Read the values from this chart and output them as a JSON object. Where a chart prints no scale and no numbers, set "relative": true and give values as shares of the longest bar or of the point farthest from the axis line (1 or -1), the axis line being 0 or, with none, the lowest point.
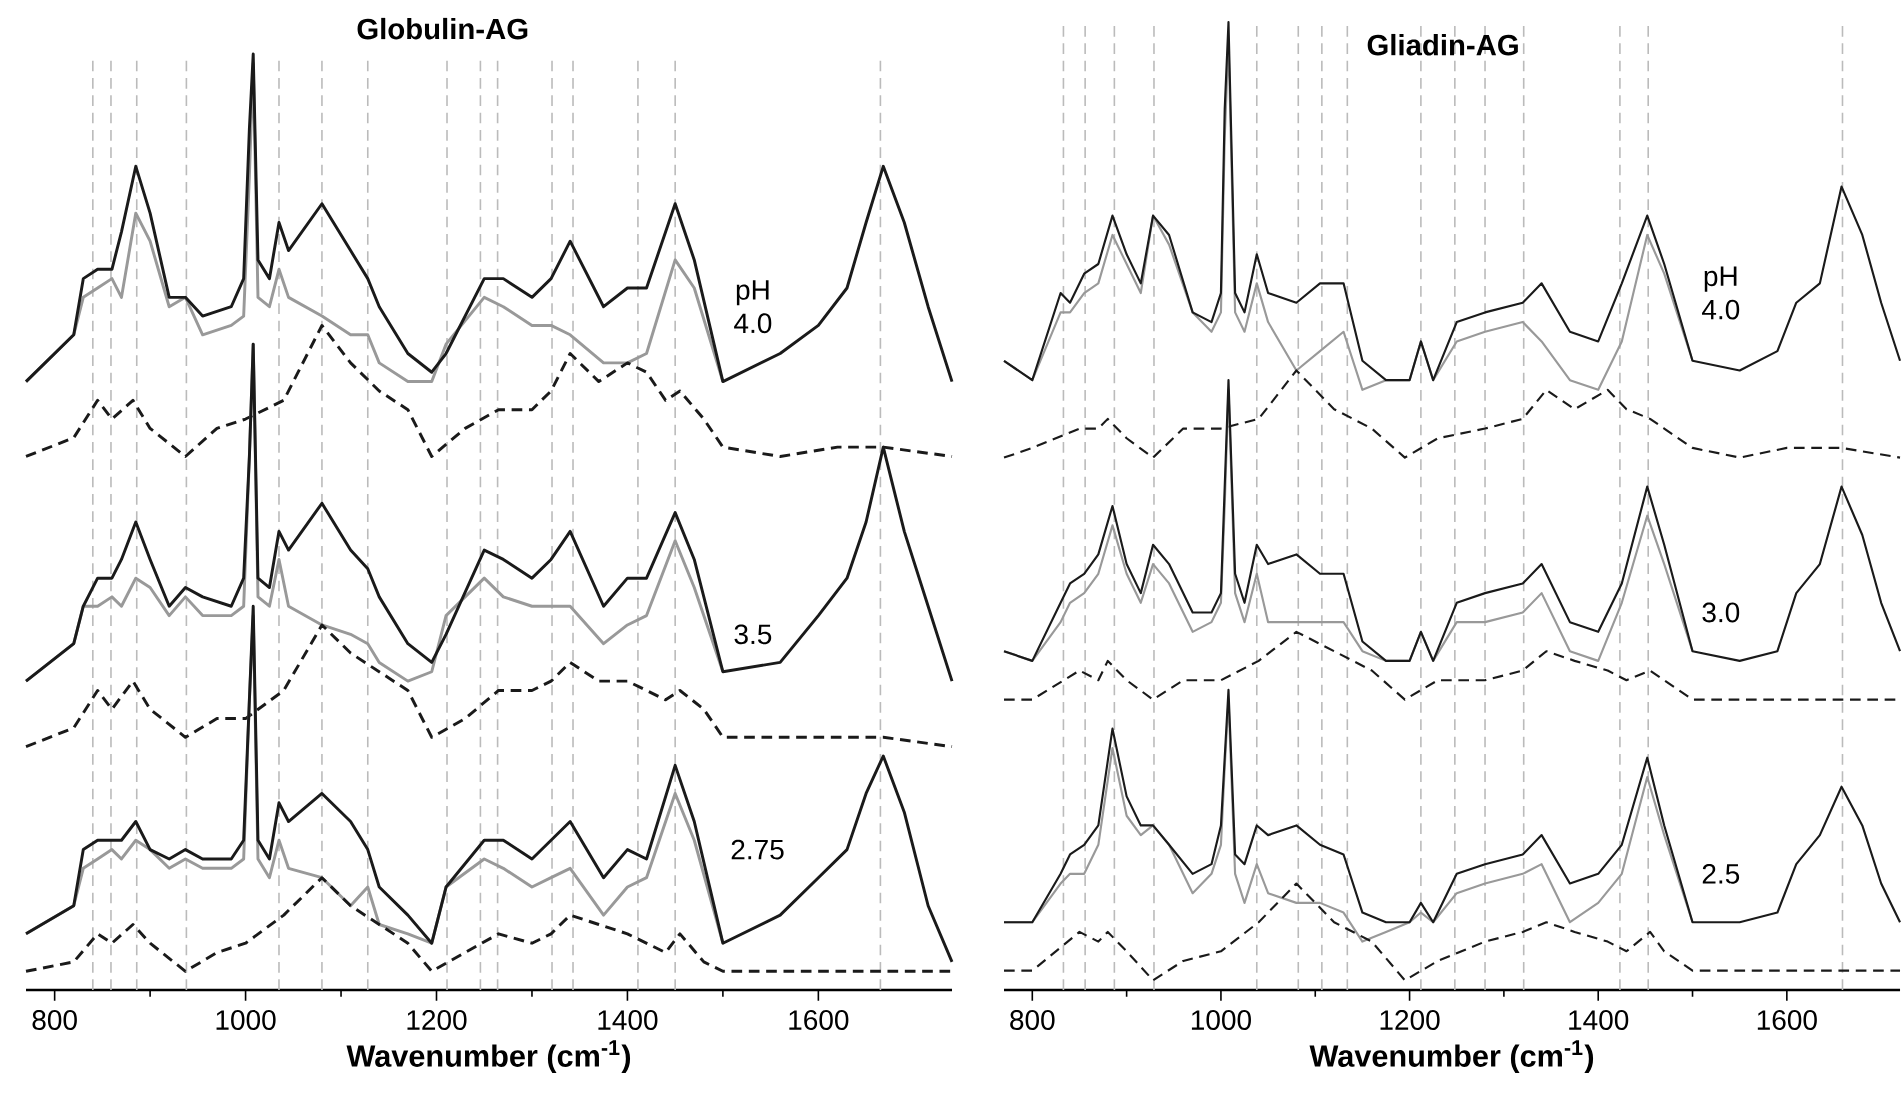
{
  "chart_data": [
    {
      "type": "line",
      "title": "Globulin-AG",
      "xlabel": "Wavenumber (cm$^{-1}$)",
      "relative": true,
      "xlim": [
        770,
        1740
      ],
      "xticks": [
        800,
        1000,
        1200,
        1400,
        1600
      ],
      "ref_lines": [
        {
          "axis": "x",
          "value": 840,
          "color": "#bbbbbb",
          "line_style": "dashed"
        },
        {
          "axis": "x",
          "value": 859,
          "color": "#bbbbbb",
          "line_style": "dashed"
        },
        {
          "axis": "x",
          "value": 886,
          "color": "#bbbbbb",
          "line_style": "dashed"
        },
        {
          "axis": "x",
          "value": 938,
          "color": "#bbbbbb",
          "line_style": "dashed"
        },
        {
          "axis": "x",
          "value": 1035,
          "color": "#bbbbbb",
          "line_style": "dashed"
        },
        {
          "axis": "x",
          "value": 1080,
          "color": "#bbbbbb",
          "line_style": "dashed"
        },
        {
          "axis": "x",
          "value": 1128,
          "color": "#bbbbbb",
          "line_style": "dashed"
        },
        {
          "axis": "x",
          "value": 1211,
          "color": "#bbbbbb",
          "line_style": "dashed"
        },
        {
          "axis": "x",
          "value": 1246,
          "color": "#bbbbbb",
          "line_style": "dashed"
        },
        {
          "axis": "x",
          "value": 1264,
          "color": "#bbbbbb",
          "line_style": "dashed"
        },
        {
          "axis": "x",
          "value": 1321,
          "color": "#bbbbbb",
          "line_style": "dashed"
        },
        {
          "axis": "x",
          "value": 1343,
          "color": "#bbbbbb",
          "line_style": "dashed"
        },
        {
          "axis": "x",
          "value": 1411,
          "color": "#bbbbbb",
          "line_style": "dashed"
        },
        {
          "axis": "x",
          "value": 1450,
          "color": "#bbbbbb",
          "line_style": "dashed"
        },
        {
          "axis": "x",
          "value": 1665,
          "color": "#bbbbbb",
          "line_style": "dashed"
        }
      ],
      "annotations": [
        "pH 4.0",
        "3.5",
        "2.75"
      ],
      "series": [
        {
          "color": "#999999",
          "line_style": "solid",
          "x": [
            770,
            820,
            830,
            845,
            860,
            870,
            885,
            900,
            920,
            937,
            955,
            985,
            998,
            1004,
            1008,
            1013,
            1025,
            1035,
            1045,
            1080,
            1110,
            1128,
            1140,
            1170,
            1195,
            1210,
            1250,
            1270,
            1300,
            1320,
            1340,
            1375,
            1400,
            1420,
            1450,
            1470,
            1500
          ],
          "values": [
            0.65,
            0.7,
            0.74,
            0.75,
            0.76,
            0.74,
            0.83,
            0.8,
            0.73,
            0.74,
            0.7,
            0.71,
            0.72,
            0.87,
            0.99,
            0.74,
            0.73,
            0.77,
            0.74,
            0.72,
            0.7,
            0.7,
            0.67,
            0.65,
            0.65,
            0.69,
            0.74,
            0.73,
            0.71,
            0.71,
            0.7,
            0.67,
            0.67,
            0.68,
            0.78,
            0.75,
            0.65
          ]
        },
        {
          "color": "#1a1a1a",
          "line_style": "solid",
          "x": [
            770,
            820,
            830,
            845,
            860,
            870,
            885,
            900,
            920,
            937,
            955,
            985,
            998,
            1004,
            1008,
            1013,
            1025,
            1035,
            1045,
            1080,
            1110,
            1128,
            1140,
            1170,
            1195,
            1210,
            1250,
            1270,
            1300,
            1320,
            1340,
            1375,
            1400,
            1420,
            1450,
            1470,
            1500,
            1560,
            1600,
            1630,
            1650,
            1668,
            1690,
            1715,
            1740
          ],
          "values": [
            0.65,
            0.7,
            0.76,
            0.77,
            0.77,
            0.81,
            0.88,
            0.83,
            0.74,
            0.74,
            0.72,
            0.73,
            0.76,
            0.92,
            1.0,
            0.78,
            0.76,
            0.82,
            0.79,
            0.84,
            0.79,
            0.76,
            0.73,
            0.68,
            0.66,
            0.68,
            0.76,
            0.76,
            0.74,
            0.76,
            0.8,
            0.73,
            0.75,
            0.75,
            0.84,
            0.78,
            0.65,
            0.68,
            0.71,
            0.75,
            0.82,
            0.88,
            0.82,
            0.73,
            0.65
          ]
        },
        {
          "color": "#1a1a1a",
          "line_style": "dashed",
          "x": [
            770,
            820,
            845,
            860,
            882,
            900,
            937,
            970,
            1000,
            1040,
            1080,
            1110,
            1140,
            1170,
            1195,
            1230,
            1265,
            1300,
            1320,
            1340,
            1370,
            1400,
            1420,
            1440,
            1455,
            1480,
            1500,
            1560,
            1620,
            1668,
            1740
          ],
          "values": [
            0.57,
            0.59,
            0.63,
            0.61,
            0.63,
            0.6,
            0.57,
            0.6,
            0.61,
            0.63,
            0.71,
            0.67,
            0.64,
            0.62,
            0.57,
            0.6,
            0.62,
            0.62,
            0.64,
            0.68,
            0.65,
            0.67,
            0.66,
            0.63,
            0.64,
            0.61,
            0.58,
            0.57,
            0.58,
            0.58,
            0.57
          ]
        },
        {
          "color": "#999999",
          "line_style": "solid",
          "x": [
            770,
            820,
            830,
            845,
            860,
            870,
            885,
            900,
            920,
            937,
            955,
            985,
            998,
            1004,
            1008,
            1013,
            1025,
            1035,
            1045,
            1080,
            1110,
            1128,
            1140,
            1170,
            1195,
            1210,
            1250,
            1270,
            1300,
            1320,
            1340,
            1375,
            1400,
            1420,
            1450,
            1470,
            1500
          ],
          "values": [
            0.33,
            0.37,
            0.41,
            0.41,
            0.42,
            0.41,
            0.44,
            0.43,
            0.4,
            0.42,
            0.4,
            0.4,
            0.41,
            0.57,
            0.69,
            0.42,
            0.41,
            0.46,
            0.41,
            0.39,
            0.38,
            0.37,
            0.35,
            0.33,
            0.34,
            0.4,
            0.44,
            0.42,
            0.41,
            0.41,
            0.41,
            0.37,
            0.39,
            0.4,
            0.48,
            0.43,
            0.34
          ]
        },
        {
          "color": "#1a1a1a",
          "line_style": "solid",
          "x": [
            770,
            820,
            830,
            845,
            860,
            870,
            885,
            900,
            920,
            937,
            955,
            985,
            998,
            1004,
            1008,
            1013,
            1025,
            1035,
            1045,
            1080,
            1110,
            1128,
            1140,
            1170,
            1195,
            1210,
            1250,
            1270,
            1300,
            1320,
            1340,
            1375,
            1400,
            1420,
            1450,
            1470,
            1500,
            1560,
            1600,
            1630,
            1650,
            1668,
            1690,
            1715,
            1740
          ],
          "values": [
            0.33,
            0.37,
            0.41,
            0.44,
            0.44,
            0.46,
            0.5,
            0.46,
            0.41,
            0.43,
            0.42,
            0.41,
            0.44,
            0.57,
            0.69,
            0.44,
            0.43,
            0.49,
            0.47,
            0.52,
            0.47,
            0.45,
            0.42,
            0.37,
            0.35,
            0.38,
            0.47,
            0.46,
            0.44,
            0.46,
            0.49,
            0.41,
            0.44,
            0.44,
            0.51,
            0.46,
            0.34,
            0.35,
            0.4,
            0.44,
            0.5,
            0.58,
            0.49,
            0.41,
            0.33
          ]
        },
        {
          "color": "#1a1a1a",
          "line_style": "dashed",
          "x": [
            770,
            820,
            845,
            860,
            882,
            900,
            937,
            970,
            1000,
            1040,
            1080,
            1110,
            1140,
            1170,
            1195,
            1230,
            1265,
            1300,
            1320,
            1340,
            1370,
            1400,
            1420,
            1440,
            1455,
            1480,
            1500,
            1560,
            1620,
            1668,
            1740
          ],
          "values": [
            0.26,
            0.28,
            0.32,
            0.3,
            0.33,
            0.3,
            0.27,
            0.29,
            0.29,
            0.32,
            0.39,
            0.36,
            0.34,
            0.32,
            0.27,
            0.29,
            0.32,
            0.32,
            0.33,
            0.35,
            0.33,
            0.33,
            0.32,
            0.31,
            0.32,
            0.3,
            0.27,
            0.27,
            0.27,
            0.27,
            0.26
          ]
        },
        {
          "color": "#999999",
          "line_style": "solid",
          "x": [
            770,
            820,
            830,
            845,
            860,
            870,
            885,
            900,
            920,
            937,
            955,
            985,
            998,
            1004,
            1008,
            1013,
            1025,
            1035,
            1045,
            1080,
            1110,
            1128,
            1140,
            1170,
            1195,
            1210,
            1250,
            1270,
            1300,
            1320,
            1340,
            1375,
            1400,
            1420,
            1450,
            1470,
            1500
          ],
          "values": [
            0.06,
            0.09,
            0.13,
            0.14,
            0.15,
            0.14,
            0.16,
            0.15,
            0.13,
            0.14,
            0.13,
            0.13,
            0.14,
            0.31,
            0.4,
            0.14,
            0.12,
            0.16,
            0.13,
            0.12,
            0.09,
            0.11,
            0.07,
            0.06,
            0.05,
            0.11,
            0.14,
            0.13,
            0.11,
            0.12,
            0.13,
            0.08,
            0.11,
            0.12,
            0.21,
            0.16,
            0.05
          ]
        },
        {
          "color": "#1a1a1a",
          "line_style": "solid",
          "x": [
            770,
            820,
            830,
            845,
            860,
            870,
            885,
            900,
            920,
            937,
            955,
            985,
            998,
            1004,
            1008,
            1013,
            1025,
            1035,
            1045,
            1080,
            1110,
            1128,
            1140,
            1170,
            1195,
            1210,
            1250,
            1270,
            1300,
            1320,
            1340,
            1375,
            1400,
            1420,
            1450,
            1470,
            1500,
            1560,
            1600,
            1630,
            1650,
            1668,
            1690,
            1715,
            1740
          ],
          "values": [
            0.06,
            0.09,
            0.15,
            0.16,
            0.16,
            0.16,
            0.18,
            0.15,
            0.14,
            0.15,
            0.14,
            0.14,
            0.16,
            0.31,
            0.41,
            0.16,
            0.14,
            0.2,
            0.18,
            0.21,
            0.18,
            0.15,
            0.11,
            0.08,
            0.05,
            0.11,
            0.16,
            0.16,
            0.14,
            0.16,
            0.18,
            0.12,
            0.15,
            0.14,
            0.24,
            0.18,
            0.05,
            0.08,
            0.12,
            0.15,
            0.21,
            0.25,
            0.19,
            0.09,
            0.03
          ]
        },
        {
          "color": "#1a1a1a",
          "line_style": "dashed",
          "x": [
            770,
            820,
            845,
            860,
            882,
            900,
            937,
            970,
            1000,
            1040,
            1080,
            1110,
            1140,
            1170,
            1195,
            1230,
            1265,
            1300,
            1320,
            1340,
            1370,
            1400,
            1420,
            1440,
            1455,
            1480,
            1500,
            1560,
            1620,
            1668,
            1740
          ],
          "values": [
            0.02,
            0.03,
            0.06,
            0.05,
            0.07,
            0.05,
            0.02,
            0.04,
            0.05,
            0.08,
            0.12,
            0.09,
            0.07,
            0.05,
            0.02,
            0.04,
            0.06,
            0.05,
            0.06,
            0.08,
            0.07,
            0.06,
            0.05,
            0.04,
            0.06,
            0.03,
            0.02,
            0.02,
            0.02,
            0.02,
            0.02
          ]
        }
      ]
    },
    {
      "type": "line",
      "title": "Gliadin-AG",
      "xlabel": "Wavenumber (cm$^{-1}$)",
      "relative": true,
      "xlim": [
        770,
        1720
      ],
      "xticks": [
        800,
        1000,
        1200,
        1400,
        1600
      ],
      "ref_lines": [
        {
          "axis": "x",
          "value": 833,
          "color": "#bbbbbb",
          "line_style": "dashed"
        },
        {
          "axis": "x",
          "value": 856,
          "color": "#bbbbbb",
          "line_style": "dashed"
        },
        {
          "axis": "x",
          "value": 887,
          "color": "#bbbbbb",
          "line_style": "dashed"
        },
        {
          "axis": "x",
          "value": 929,
          "color": "#bbbbbb",
          "line_style": "dashed"
        },
        {
          "axis": "x",
          "value": 1038,
          "color": "#bbbbbb",
          "line_style": "dashed"
        },
        {
          "axis": "x",
          "value": 1082,
          "color": "#bbbbbb",
          "line_style": "dashed"
        },
        {
          "axis": "x",
          "value": 1107,
          "color": "#bbbbbb",
          "line_style": "dashed"
        },
        {
          "axis": "x",
          "value": 1134,
          "color": "#bbbbbb",
          "line_style": "dashed"
        },
        {
          "axis": "x",
          "value": 1212,
          "color": "#bbbbbb",
          "line_style": "dashed"
        },
        {
          "axis": "x",
          "value": 1248,
          "color": "#bbbbbb",
          "line_style": "dashed"
        },
        {
          "axis": "x",
          "value": 1280,
          "color": "#bbbbbb",
          "line_style": "dashed"
        },
        {
          "axis": "x",
          "value": 1321,
          "color": "#bbbbbb",
          "line_style": "dashed"
        },
        {
          "axis": "x",
          "value": 1423,
          "color": "#bbbbbb",
          "line_style": "dashed"
        },
        {
          "axis": "x",
          "value": 1453,
          "color": "#bbbbbb",
          "line_style": "dashed"
        },
        {
          "axis": "x",
          "value": 1659,
          "color": "#bbbbbb",
          "line_style": "dashed"
        }
      ],
      "annotations": [
        "pH 4.0",
        "3.0",
        "2.5"
      ],
      "series": [
        {
          "color": "#999999",
          "line_style": "solid",
          "x": [
            770,
            800,
            830,
            840,
            855,
            870,
            885,
            900,
            915,
            928,
            945,
            970,
            990,
            1000,
            1004,
            1008,
            1015,
            1025,
            1038,
            1050,
            1080,
            1105,
            1130,
            1150,
            1175,
            1200,
            1212,
            1225,
            1250,
            1280,
            1320,
            1340,
            1370,
            1400,
            1425,
            1452,
            1470,
            1500
          ],
          "values": [
            0.65,
            0.63,
            0.7,
            0.7,
            0.72,
            0.73,
            0.78,
            0.75,
            0.72,
            0.8,
            0.77,
            0.7,
            0.68,
            0.7,
            0.88,
            0.98,
            0.7,
            0.68,
            0.73,
            0.69,
            0.64,
            0.66,
            0.68,
            0.62,
            0.63,
            0.63,
            0.67,
            0.63,
            0.67,
            0.68,
            0.69,
            0.67,
            0.63,
            0.62,
            0.67,
            0.78,
            0.74,
            0.65
          ]
        },
        {
          "color": "#1a1a1a",
          "line_style": "solid",
          "x": [
            770,
            800,
            830,
            840,
            855,
            870,
            885,
            900,
            915,
            928,
            945,
            970,
            990,
            1000,
            1004,
            1008,
            1015,
            1025,
            1038,
            1050,
            1080,
            1105,
            1130,
            1150,
            1175,
            1200,
            1212,
            1225,
            1250,
            1280,
            1320,
            1340,
            1370,
            1400,
            1425,
            1452,
            1470,
            1500,
            1550,
            1590,
            1610,
            1635,
            1658,
            1680,
            1700,
            1720
          ],
          "values": [
            0.65,
            0.63,
            0.72,
            0.71,
            0.74,
            0.75,
            0.8,
            0.76,
            0.73,
            0.8,
            0.78,
            0.7,
            0.69,
            0.72,
            0.91,
            1.0,
            0.72,
            0.7,
            0.76,
            0.72,
            0.71,
            0.73,
            0.73,
            0.65,
            0.63,
            0.63,
            0.67,
            0.63,
            0.69,
            0.7,
            0.71,
            0.73,
            0.68,
            0.67,
            0.73,
            0.8,
            0.75,
            0.65,
            0.64,
            0.66,
            0.71,
            0.73,
            0.83,
            0.78,
            0.71,
            0.65
          ]
        },
        {
          "color": "#1a1a1a",
          "line_style": "dashed",
          "x": [
            770,
            800,
            850,
            870,
            880,
            900,
            928,
            960,
            1000,
            1040,
            1080,
            1120,
            1160,
            1195,
            1230,
            1280,
            1320,
            1345,
            1375,
            1410,
            1430,
            1455,
            1470,
            1500,
            1550,
            1600,
            1658,
            1720
          ],
          "values": [
            0.55,
            0.56,
            0.58,
            0.58,
            0.59,
            0.57,
            0.55,
            0.58,
            0.58,
            0.59,
            0.64,
            0.6,
            0.58,
            0.55,
            0.57,
            0.58,
            0.59,
            0.62,
            0.6,
            0.62,
            0.6,
            0.59,
            0.58,
            0.56,
            0.55,
            0.56,
            0.56,
            0.55
          ]
        },
        {
          "color": "#999999",
          "line_style": "solid",
          "x": [
            770,
            800,
            830,
            840,
            855,
            870,
            885,
            900,
            915,
            928,
            945,
            970,
            990,
            1000,
            1004,
            1008,
            1015,
            1025,
            1038,
            1050,
            1080,
            1105,
            1130,
            1150,
            1175,
            1200,
            1212,
            1225,
            1250,
            1280,
            1320,
            1340,
            1370,
            1400,
            1425,
            1452,
            1470,
            1500
          ],
          "values": [
            0.35,
            0.34,
            0.38,
            0.4,
            0.41,
            0.43,
            0.48,
            0.43,
            0.4,
            0.44,
            0.42,
            0.37,
            0.38,
            0.4,
            0.5,
            0.62,
            0.41,
            0.38,
            0.43,
            0.38,
            0.38,
            0.38,
            0.38,
            0.35,
            0.34,
            0.34,
            0.37,
            0.34,
            0.38,
            0.38,
            0.39,
            0.41,
            0.35,
            0.34,
            0.4,
            0.49,
            0.44,
            0.35
          ]
        },
        {
          "color": "#1a1a1a",
          "line_style": "solid",
          "x": [
            770,
            800,
            830,
            840,
            855,
            870,
            885,
            900,
            915,
            928,
            945,
            970,
            990,
            1000,
            1004,
            1008,
            1015,
            1025,
            1038,
            1050,
            1080,
            1105,
            1130,
            1150,
            1175,
            1200,
            1212,
            1225,
            1250,
            1280,
            1320,
            1340,
            1370,
            1400,
            1425,
            1452,
            1470,
            1500,
            1550,
            1590,
            1610,
            1635,
            1658,
            1680,
            1700,
            1720
          ],
          "values": [
            0.35,
            0.34,
            0.4,
            0.42,
            0.43,
            0.45,
            0.5,
            0.44,
            0.41,
            0.46,
            0.44,
            0.39,
            0.39,
            0.41,
            0.52,
            0.63,
            0.43,
            0.4,
            0.46,
            0.44,
            0.45,
            0.43,
            0.43,
            0.36,
            0.34,
            0.34,
            0.37,
            0.34,
            0.4,
            0.41,
            0.42,
            0.44,
            0.38,
            0.37,
            0.42,
            0.52,
            0.46,
            0.35,
            0.34,
            0.35,
            0.41,
            0.44,
            0.52,
            0.47,
            0.4,
            0.35
          ]
        },
        {
          "color": "#1a1a1a",
          "line_style": "dashed",
          "x": [
            770,
            800,
            850,
            870,
            880,
            900,
            928,
            960,
            1000,
            1040,
            1080,
            1120,
            1160,
            1195,
            1230,
            1280,
            1320,
            1345,
            1375,
            1410,
            1430,
            1455,
            1470,
            1500,
            1550,
            1600,
            1658,
            1720
          ],
          "values": [
            0.3,
            0.3,
            0.33,
            0.32,
            0.34,
            0.32,
            0.3,
            0.32,
            0.32,
            0.34,
            0.37,
            0.35,
            0.33,
            0.3,
            0.32,
            0.32,
            0.33,
            0.35,
            0.34,
            0.33,
            0.32,
            0.33,
            0.32,
            0.3,
            0.3,
            0.3,
            0.3,
            0.3
          ]
        },
        {
          "color": "#999999",
          "line_style": "solid",
          "x": [
            770,
            800,
            830,
            840,
            855,
            870,
            885,
            900,
            915,
            928,
            945,
            970,
            990,
            1000,
            1004,
            1008,
            1015,
            1025,
            1038,
            1050,
            1080,
            1105,
            1130,
            1150,
            1175,
            1200,
            1212,
            1225,
            1250,
            1280,
            1320,
            1340,
            1370,
            1400,
            1425,
            1452,
            1470,
            1500
          ],
          "values": [
            0.07,
            0.07,
            0.11,
            0.12,
            0.12,
            0.15,
            0.25,
            0.18,
            0.16,
            0.17,
            0.15,
            0.1,
            0.12,
            0.15,
            0.23,
            0.3,
            0.12,
            0.09,
            0.13,
            0.1,
            0.09,
            0.09,
            0.08,
            0.05,
            0.06,
            0.07,
            0.08,
            0.07,
            0.1,
            0.11,
            0.12,
            0.13,
            0.07,
            0.09,
            0.12,
            0.22,
            0.16,
            0.07
          ]
        },
        {
          "color": "#1a1a1a",
          "line_style": "solid",
          "x": [
            770,
            800,
            830,
            840,
            855,
            870,
            885,
            900,
            915,
            928,
            945,
            970,
            990,
            1000,
            1004,
            1008,
            1015,
            1025,
            1038,
            1050,
            1080,
            1105,
            1130,
            1150,
            1175,
            1200,
            1212,
            1225,
            1250,
            1280,
            1320,
            1340,
            1370,
            1400,
            1425,
            1452,
            1470,
            1500,
            1550,
            1590,
            1610,
            1635,
            1658,
            1680,
            1700,
            1720
          ],
          "values": [
            0.07,
            0.07,
            0.12,
            0.14,
            0.15,
            0.17,
            0.27,
            0.2,
            0.17,
            0.17,
            0.15,
            0.12,
            0.13,
            0.17,
            0.24,
            0.31,
            0.14,
            0.13,
            0.17,
            0.16,
            0.17,
            0.15,
            0.14,
            0.08,
            0.07,
            0.07,
            0.09,
            0.07,
            0.12,
            0.13,
            0.14,
            0.16,
            0.11,
            0.12,
            0.15,
            0.24,
            0.17,
            0.07,
            0.07,
            0.08,
            0.13,
            0.16,
            0.21,
            0.17,
            0.11,
            0.07
          ]
        },
        {
          "color": "#1a1a1a",
          "line_style": "dashed",
          "x": [
            770,
            800,
            850,
            870,
            880,
            900,
            928,
            960,
            1000,
            1040,
            1080,
            1120,
            1160,
            1195,
            1230,
            1280,
            1320,
            1345,
            1375,
            1410,
            1430,
            1455,
            1470,
            1500,
            1550,
            1600,
            1658,
            1720
          ],
          "values": [
            0.02,
            0.02,
            0.06,
            0.05,
            0.06,
            0.04,
            0.01,
            0.03,
            0.04,
            0.07,
            0.11,
            0.07,
            0.05,
            0.01,
            0.03,
            0.05,
            0.06,
            0.07,
            0.06,
            0.05,
            0.04,
            0.06,
            0.04,
            0.02,
            0.02,
            0.02,
            0.02,
            0.02
          ]
        }
      ]
    }
  ]
}
